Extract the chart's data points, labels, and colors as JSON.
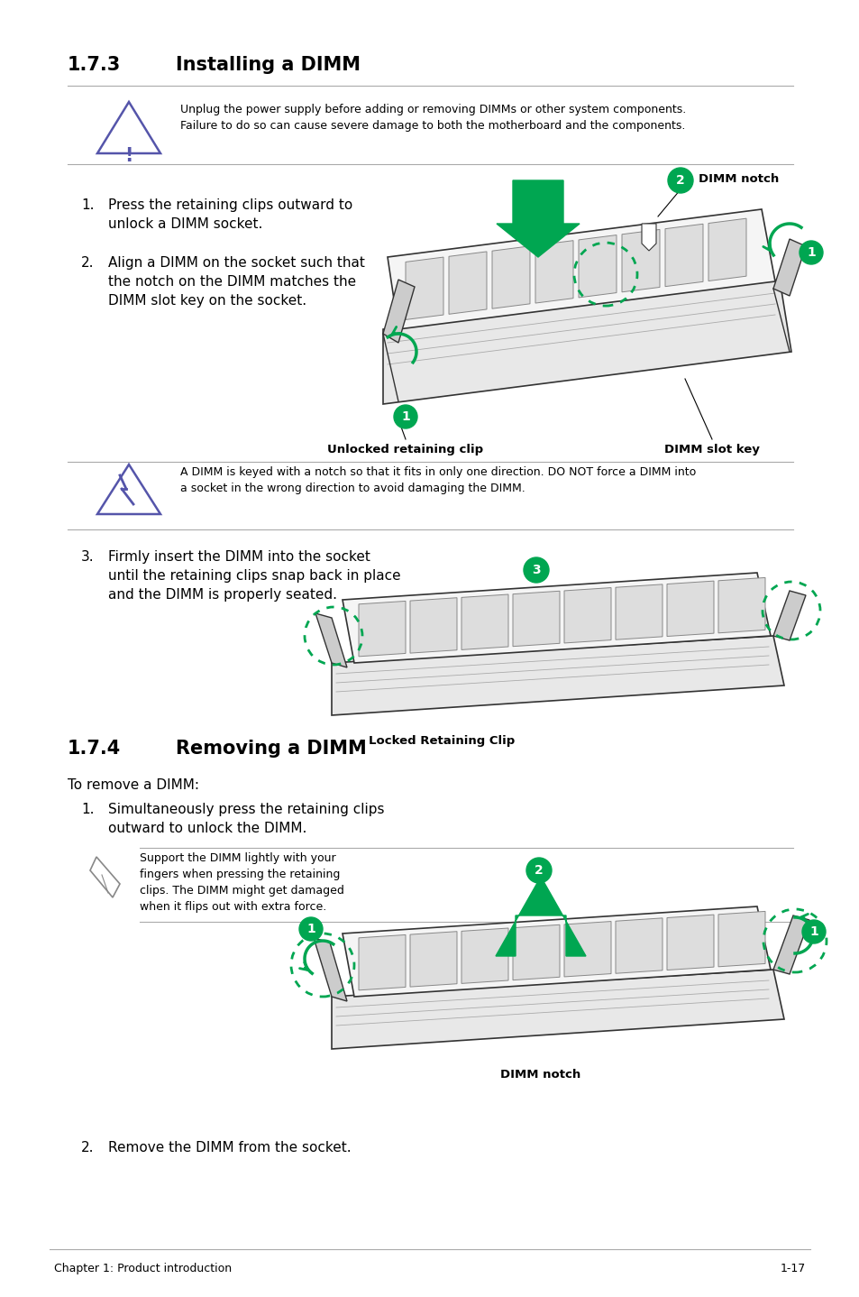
{
  "bg_color": "#ffffff",
  "text_color": "#000000",
  "title_173": "1.7.3",
  "title_173_text": "Installing a DIMM",
  "title_174": "1.7.4",
  "title_174_text": "Removing a DIMM",
  "warning1_text": "Unplug the power supply before adding or removing DIMMs or other system components.\nFailure to do so can cause severe damage to both the motherboard and the components.",
  "caution1_text": "A DIMM is keyed with a notch so that it fits in only one direction. DO NOT force a DIMM into\na socket in the wrong direction to avoid damaging the DIMM.",
  "note1_text": "Support the DIMM lightly with your\nfingers when pressing the retaining\nclips. The DIMM might get damaged\nwhen it flips out with extra force.",
  "to_remove": "To remove a DIMM:",
  "label_unlocked": "Unlocked retaining clip",
  "label_dimm_slot": "DIMM slot key",
  "label_dimm_notch_install": "DIMM notch",
  "label_locked": "Locked Retaining Clip",
  "label_dimm_notch_remove": "DIMM notch",
  "footer_left": "Chapter 1: Product introduction",
  "footer_right": "1-17",
  "green_color": "#00a651",
  "warning_icon_color": "#5555aa",
  "line_color": "#aaaaaa",
  "dark_color": "#333333",
  "chip_color": "#dddddd",
  "board_color": "#f5f5f5",
  "sock_color": "#e8e8e8",
  "clip_color": "#cccccc"
}
